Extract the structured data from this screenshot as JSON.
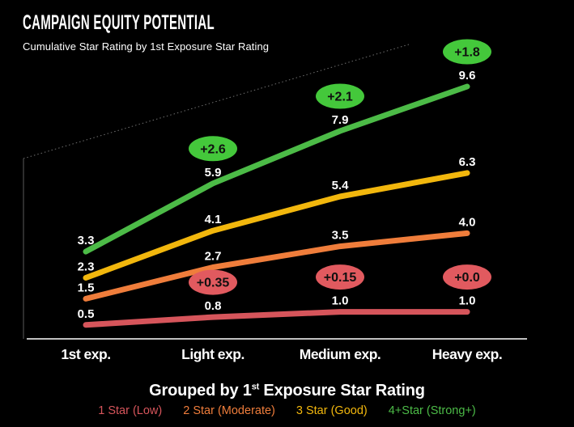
{
  "header": {
    "title": "CAMPAIGN EQUITY POTENTIAL",
    "subtitle": "Cumulative Star Rating by 1st Exposure Star Rating"
  },
  "footer": {
    "grouped_prefix": "Grouped by 1",
    "grouped_sup": "st",
    "grouped_suffix": " Exposure Star Rating"
  },
  "legend": {
    "items": [
      {
        "label": "1 Star (Low)",
        "color": "#D6555B"
      },
      {
        "label": "2 Star (Moderate)",
        "color": "#EF7D3B"
      },
      {
        "label": "3 Star (Good)",
        "color": "#F2B70D"
      },
      {
        "label": "4+Star (Strong+)",
        "color": "#4CBB47"
      }
    ]
  },
  "chart_data": {
    "type": "line",
    "title": "Campaign Equity Potential",
    "subtitle": "Cumulative Star Rating by 1st Exposure Star Rating",
    "categories": [
      "1st exp.",
      "Light exp.",
      "Medium exp.",
      "Heavy exp."
    ],
    "series": [
      {
        "name": "4+Star (Strong+)",
        "color": "#4CBB47",
        "badge_color": "#44C83B",
        "values": [
          3.3,
          5.9,
          7.9,
          9.6
        ],
        "deltas": [
          null,
          "+2.6",
          "+2.1",
          "+1.8"
        ]
      },
      {
        "name": "3 Star (Good)",
        "color": "#F2B70D",
        "badge_color": null,
        "values": [
          2.3,
          4.1,
          5.4,
          6.3
        ],
        "deltas": [
          null,
          null,
          null,
          null
        ]
      },
      {
        "name": "2 Star (Moderate)",
        "color": "#EF7D3B",
        "badge_color": null,
        "values": [
          1.5,
          2.7,
          3.5,
          4.0
        ],
        "deltas": [
          null,
          null,
          null,
          null
        ]
      },
      {
        "name": "1 Star (Low)",
        "color": "#D6555B",
        "badge_color": "#E15A5F",
        "values": [
          0.5,
          0.8,
          1.0,
          1.0
        ],
        "deltas": [
          null,
          "+0.35",
          "+0.15",
          "+0.0"
        ]
      }
    ],
    "ylim": [
      0,
      10
    ],
    "grid": false,
    "legend_position": "bottom",
    "badge_text_color": "#101010",
    "value_label_color": "#ffffff"
  }
}
